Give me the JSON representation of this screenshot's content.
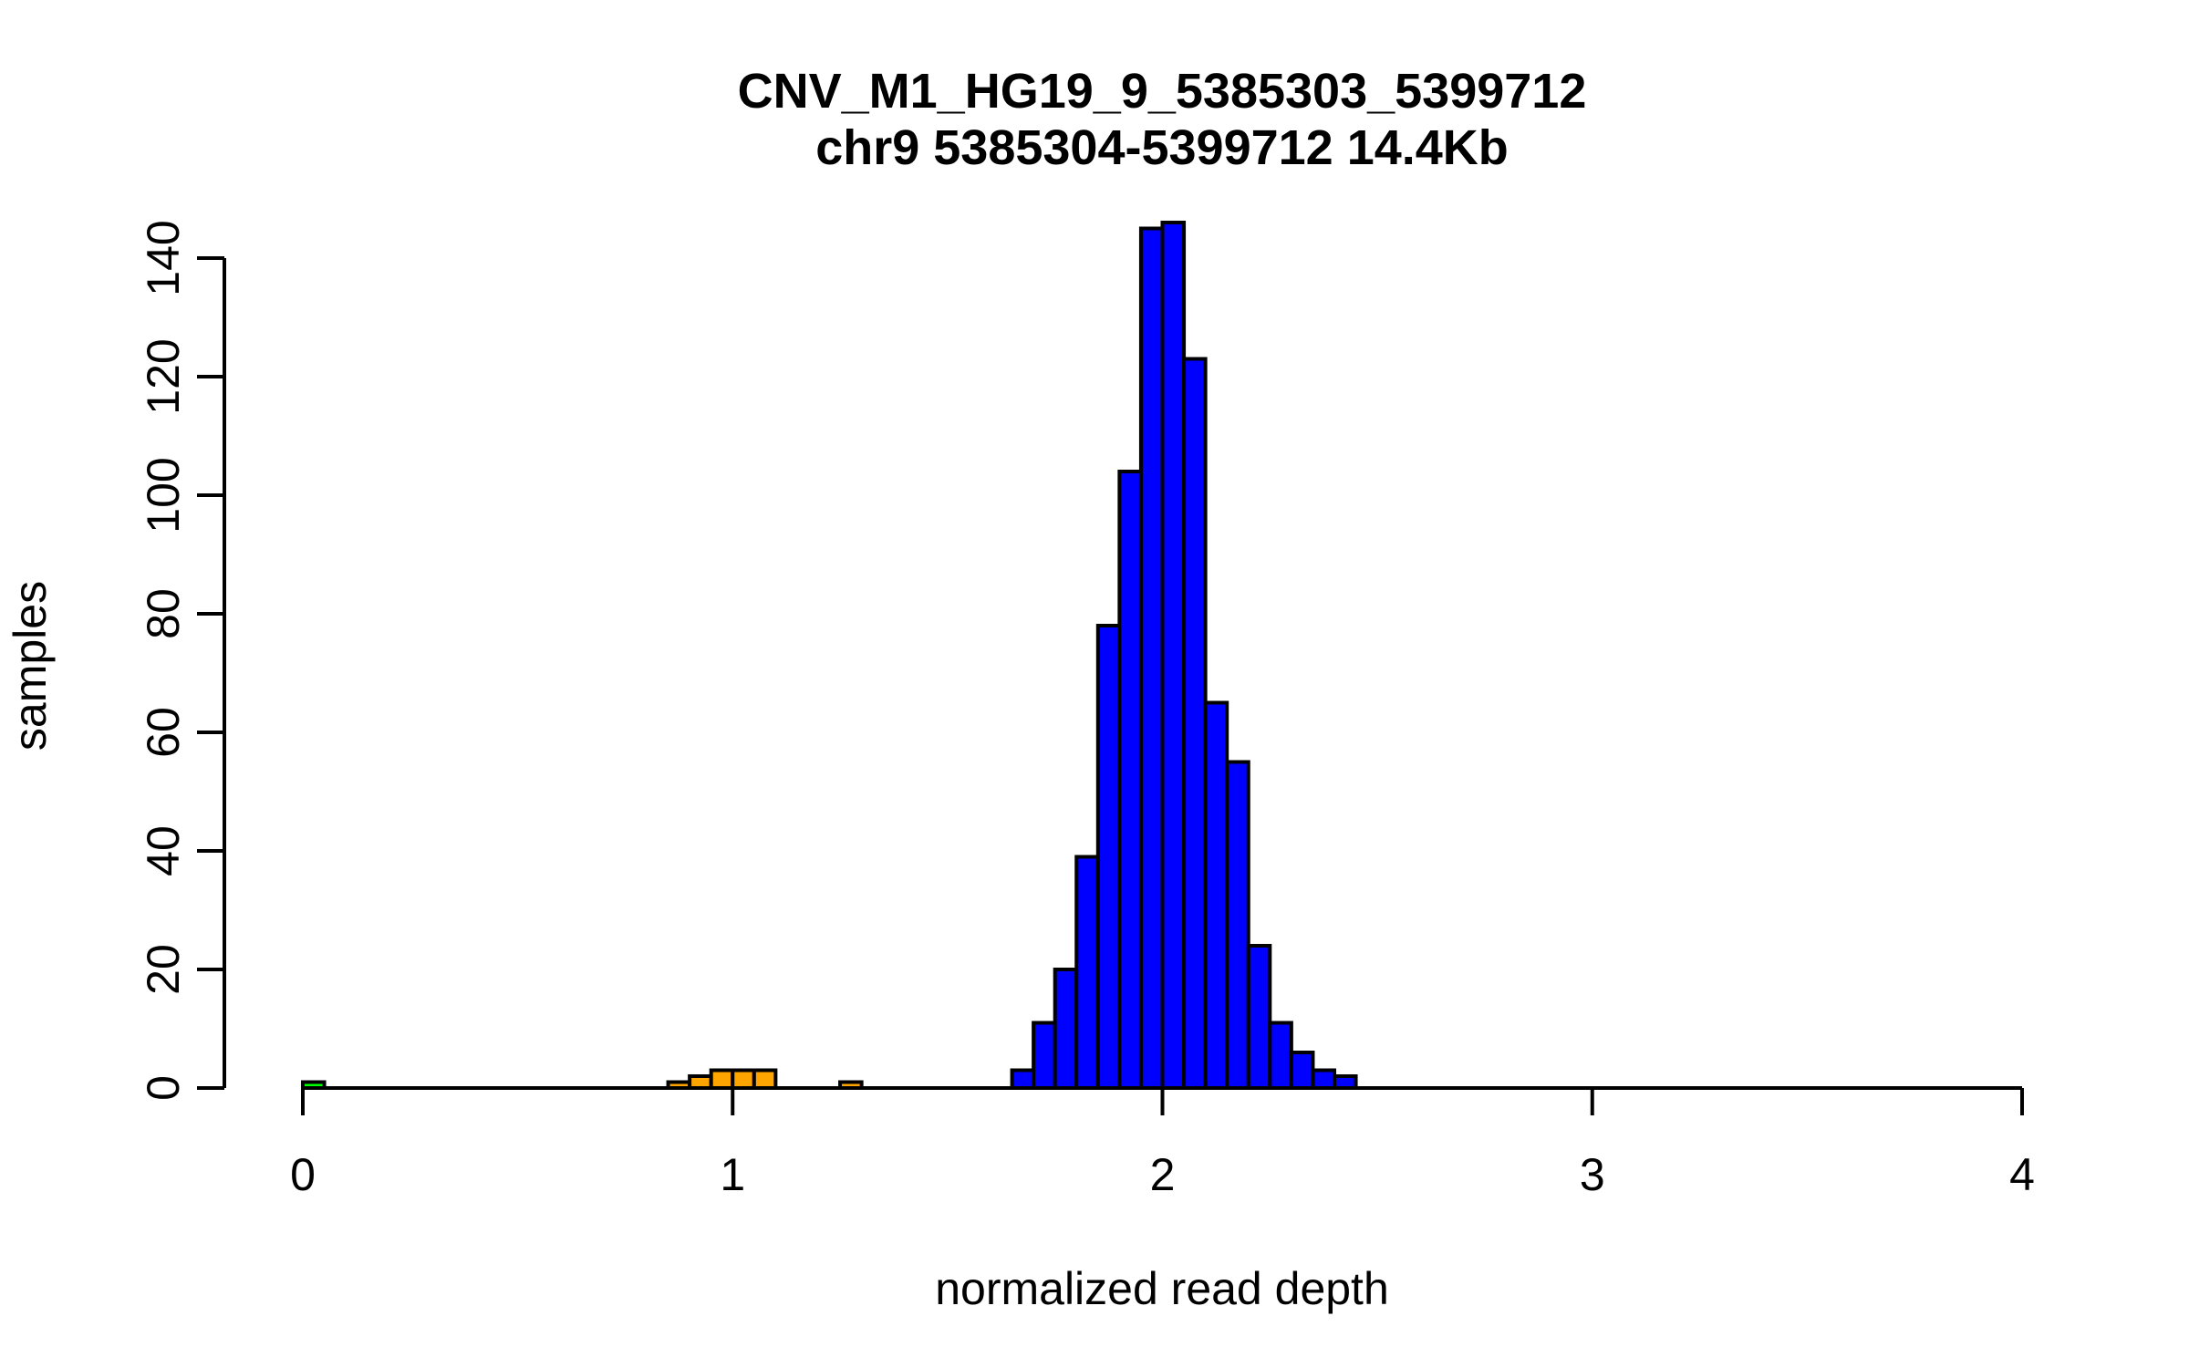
{
  "chart_data": {
    "type": "bar",
    "subtype": "histogram",
    "title": "CNV_M1_HG19_9_5385303_5399712",
    "subtitle": "chr9 5385304-5399712 14.4Kb",
    "xlabel": "normalized read depth",
    "ylabel": "samples",
    "xlim": [
      0,
      4
    ],
    "ylim": [
      0,
      140
    ],
    "x_ticks": [
      0,
      1,
      2,
      3,
      4
    ],
    "y_ticks": [
      0,
      20,
      40,
      60,
      80,
      100,
      120,
      140
    ],
    "grid": false,
    "legend": "none",
    "bin_width": 0.05,
    "colors": {
      "normal_fill": "#0000FF",
      "loss_fill": "#FFA500",
      "deep_loss_fill": "#00FF00",
      "stroke": "#000000",
      "background": "#FFFFFF"
    },
    "bars": [
      {
        "x0": 0.0,
        "count": 1,
        "color": "#00FF00"
      },
      {
        "x0": 0.85,
        "count": 1,
        "color": "#FFA500"
      },
      {
        "x0": 0.9,
        "count": 2,
        "color": "#FFA500"
      },
      {
        "x0": 0.95,
        "count": 3,
        "color": "#FFA500"
      },
      {
        "x0": 1.0,
        "count": 3,
        "color": "#FFA500"
      },
      {
        "x0": 1.05,
        "count": 3,
        "color": "#FFA500"
      },
      {
        "x0": 1.25,
        "count": 1,
        "color": "#FFA500"
      },
      {
        "x0": 1.65,
        "count": 3,
        "color": "#0000FF"
      },
      {
        "x0": 1.7,
        "count": 11,
        "color": "#0000FF"
      },
      {
        "x0": 1.75,
        "count": 20,
        "color": "#0000FF"
      },
      {
        "x0": 1.8,
        "count": 39,
        "color": "#0000FF"
      },
      {
        "x0": 1.85,
        "count": 78,
        "color": "#0000FF"
      },
      {
        "x0": 1.9,
        "count": 104,
        "color": "#0000FF"
      },
      {
        "x0": 1.95,
        "count": 145,
        "color": "#0000FF"
      },
      {
        "x0": 2.0,
        "count": 146,
        "color": "#0000FF"
      },
      {
        "x0": 2.05,
        "count": 123,
        "color": "#0000FF"
      },
      {
        "x0": 2.1,
        "count": 65,
        "color": "#0000FF"
      },
      {
        "x0": 2.15,
        "count": 55,
        "color": "#0000FF"
      },
      {
        "x0": 2.2,
        "count": 24,
        "color": "#0000FF"
      },
      {
        "x0": 2.25,
        "count": 11,
        "color": "#0000FF"
      },
      {
        "x0": 2.3,
        "count": 6,
        "color": "#0000FF"
      },
      {
        "x0": 2.35,
        "count": 3,
        "color": "#0000FF"
      },
      {
        "x0": 2.4,
        "count": 2,
        "color": "#0000FF"
      }
    ]
  }
}
